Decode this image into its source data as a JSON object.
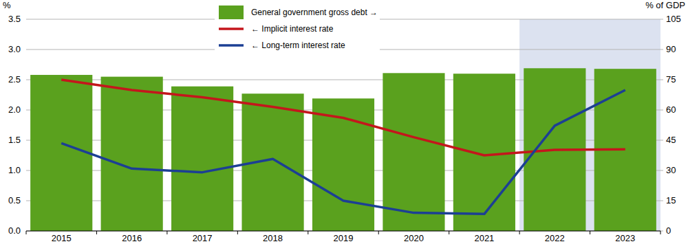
{
  "chart_data": {
    "type": "bar",
    "y_label": "%",
    "y2_label": "% of GDP",
    "categories": [
      "2015",
      "2016",
      "2017",
      "2018",
      "2019",
      "2020",
      "2021",
      "2022",
      "2023"
    ],
    "highlight": [
      "2022",
      "2023"
    ],
    "series": [
      {
        "name": "General government gross debt →",
        "type": "bar",
        "axis": "y2",
        "color": "#5aa11e",
        "values": [
          77.4,
          76.5,
          71.7,
          68.1,
          65.7,
          78.3,
          78.0,
          80.7,
          80.4
        ]
      },
      {
        "name": "← Implicit interest rate",
        "type": "line",
        "color": "#c4161c",
        "values": [
          2.5,
          2.33,
          2.21,
          2.05,
          1.87,
          1.55,
          1.25,
          1.34,
          1.35
        ]
      },
      {
        "name": "← Long-term interest rate",
        "type": "line",
        "color": "#1c3f94",
        "values": [
          1.45,
          1.03,
          0.97,
          1.19,
          0.5,
          0.3,
          0.28,
          1.74,
          2.33
        ]
      }
    ],
    "ylim": [
      0,
      3.5
    ],
    "yticks": [
      {
        "value": 0,
        "label": "0.0"
      },
      0.5,
      {
        "value": 1,
        "label": "1.0"
      },
      1.5,
      {
        "value": 2,
        "label": "2.0"
      },
      2.5,
      {
        "value": 3,
        "label": "3.0"
      },
      3.5
    ],
    "y2lim": [
      0,
      105
    ],
    "y2ticks": [
      0,
      15,
      30,
      45,
      60,
      75,
      90,
      105
    ],
    "grid": true
  }
}
